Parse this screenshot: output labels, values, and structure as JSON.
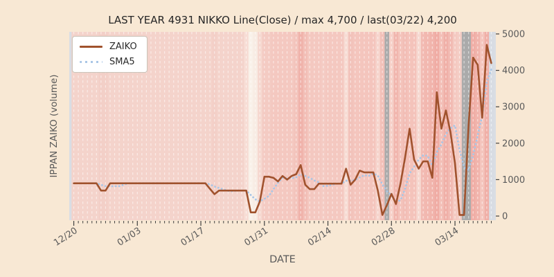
{
  "window": {
    "title": "stock inventory chart"
  },
  "header": {
    "title": "LAST YEAR 4931 NIKKO Line(Close) / max 4,700 / last(03/22) 4,200"
  },
  "axes": {
    "xlabel": "DATE",
    "ylabel": "IPPAN ZAIKO (volume)"
  },
  "legend": {
    "items": [
      {
        "label": "ZAIKO",
        "style": "solid",
        "color": "#a0522d"
      },
      {
        "label": "SMA5",
        "style": "dotted",
        "color": "#a9c6e6"
      }
    ]
  },
  "colors": {
    "figure_background": "#f8e8d4",
    "plot_background": "#d9dde4",
    "gridline": "#ffffff",
    "tick": "#3f3f3f",
    "tick_label": "#595959",
    "title_text": "#262626",
    "zaiko_line": "#a0522d",
    "sma5_line": "#a9c6e6",
    "holiday_band": "#ababab"
  },
  "chart_data": {
    "type": "line",
    "title": "LAST YEAR 4931 NIKKO Line(Close) / max 4,700 / last(03/22) 4,200",
    "xlabel": "DATE",
    "ylabel": "IPPAN ZAIKO (volume)",
    "x_start_date": "12/20",
    "x_end_date": "03/22",
    "x_tick_labels": [
      "12/20",
      "01/03",
      "01/17",
      "01/31",
      "02/14",
      "02/28",
      "03/14"
    ],
    "x_tick_indices": [
      0,
      14,
      28,
      42,
      56,
      70,
      84
    ],
    "y_ticks": [
      0,
      1000,
      2000,
      3000,
      4000,
      5000
    ],
    "ylim": [
      0,
      5000
    ],
    "max_value": 4700,
    "last_value": 4200,
    "grid": "vertical-white-dashed-daily",
    "legend_position": "upper-left",
    "series": [
      {
        "name": "ZAIKO",
        "style": "solid",
        "color": "#a0522d",
        "values": [
          900,
          900,
          900,
          900,
          900,
          900,
          700,
          700,
          900,
          900,
          900,
          900,
          900,
          900,
          900,
          900,
          900,
          900,
          900,
          900,
          900,
          900,
          900,
          900,
          900,
          900,
          900,
          900,
          900,
          900,
          750,
          600,
          700,
          700,
          700,
          700,
          700,
          700,
          700,
          100,
          100,
          400,
          1080,
          1080,
          1050,
          950,
          1100,
          1000,
          1100,
          1150,
          1400,
          860,
          740,
          740,
          890,
          890,
          890,
          890,
          890,
          890,
          1300,
          860,
          1000,
          1250,
          1200,
          1200,
          1200,
          700,
          30,
          300,
          610,
          330,
          900,
          1600,
          2400,
          1550,
          1300,
          1500,
          1500,
          1050,
          3400,
          2400,
          2900,
          2300,
          1450,
          30,
          30,
          2500,
          4350,
          4150,
          2700,
          4700,
          4200
        ]
      },
      {
        "name": "SMA5",
        "style": "dotted",
        "color": "#a9c6e6",
        "derived": "5-day moving average of ZAIKO",
        "window": 5
      }
    ],
    "background_bands": [
      "#f4d3cb",
      "#f4d3cb",
      "#f4d3cb",
      "#f4d3cb",
      "#f4d3cb",
      "#f4d3cb",
      "#f3cfc7",
      "#f3cfc7",
      "#f4d3cb",
      "#f4d3cb",
      "#f4d3cb",
      "#f4d3cb",
      "#f4d3cb",
      "#f4d3cb",
      "#f4d3cb",
      "#f4d3cb",
      "#f4d3cb",
      "#f4d3cb",
      "#f4d3cb",
      "#f4d3cb",
      "#f4d3cb",
      "#f4d3cb",
      "#f4d3cb",
      "#f4d3cb",
      "#f4d3cb",
      "#f4d3cb",
      "#f4d3cb",
      "#f4d3cb",
      "#f4d3cb",
      "#f4d3cb",
      "#f4d3cb",
      "#f3cfc7",
      "#f4d3cb",
      "#f4d3cb",
      "#f4d3cb",
      "#f4d3cb",
      "#f4d3cb",
      "#f4d3cb",
      "#f7ddd5",
      "#f9f1e9",
      "#f8ece4",
      "#f6d8d0",
      "#f4cbc3",
      "#f4cbc3",
      "#f4c8c0",
      "#f4c8c0",
      "#f4c8c0",
      "#f4c8c0",
      "#f4c8c0",
      "#f3c4bc",
      "#f0b2aa",
      "#f2beb6",
      "#f4c8c0",
      "#f4c8c0",
      "#f4c8c0",
      "#f4cbc3",
      "#f4c8c0",
      "#f4c8c0",
      "#f4c8c0",
      "#f4c8c0",
      "#f7dbd3",
      "#f2c2ba",
      "#f4c5bd",
      "#f4c5bd",
      "#f4c5bd",
      "#f4c5bd",
      "#f4c5bd",
      "#f6d4cc",
      "#f2c0b8",
      "#ababab",
      "#f6d0c8",
      "#f1b6ae",
      "#f4c3bb",
      "#f2beb6",
      "#f4c3bb",
      "#f4c3bb",
      "#f6d8d0",
      "#f2bab2",
      "#f2b8b0",
      "#f1b4ac",
      "#f0aca4",
      "#f3bfb7",
      "#f0b0a8",
      "#f2bab2",
      "#f4c9c1",
      "#f4cdc5",
      "#ababab",
      "#ababab",
      "#f0aea6",
      "#f1b4ac",
      "#f4c5bd",
      "#f0b0a8",
      "#d8dce3"
    ]
  }
}
